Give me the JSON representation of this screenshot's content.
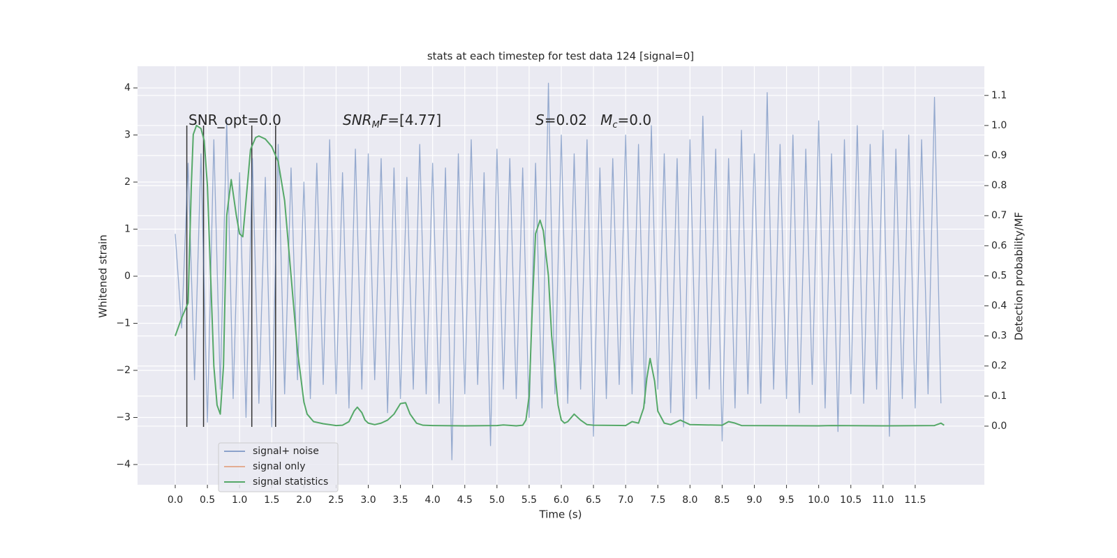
{
  "chart_data": {
    "type": "line",
    "title": "stats at each timestep for test data 124 [signal=0]",
    "xlabel": "Time (s)",
    "ylabel": "Whitened strain",
    "y2label": "Detection probability/MF",
    "xlim": [
      -0.586,
      12.575
    ],
    "ylim": [
      -4.43,
      4.46
    ],
    "y2lim": [
      -0.195,
      1.197
    ],
    "xticks": [
      {
        "value": 0,
        "label": "0.0"
      },
      0.5,
      {
        "value": 1,
        "label": "1.0"
      },
      1.5,
      {
        "value": 2,
        "label": "2.0"
      },
      2.5,
      {
        "value": 3,
        "label": "3.0"
      },
      3.5,
      {
        "value": 4,
        "label": "4.0"
      },
      4.5,
      {
        "value": 5,
        "label": "5.0"
      },
      5.5,
      {
        "value": 6,
        "label": "6.0"
      },
      6.5,
      {
        "value": 7,
        "label": "7.0"
      },
      7.5,
      {
        "value": 8,
        "label": "8.0"
      },
      8.5,
      {
        "value": 9,
        "label": "9.0"
      },
      9.5,
      {
        "value": 10,
        "label": "10.0"
      },
      10.5,
      {
        "value": 11,
        "label": "11.0"
      },
      11.5
    ],
    "yticks": [
      {
        "value": -4,
        "label": "−4"
      },
      {
        "value": -3,
        "label": "−3"
      },
      {
        "value": -2,
        "label": "−2"
      },
      {
        "value": -1,
        "label": "−1"
      },
      0,
      1,
      2,
      3,
      4
    ],
    "y2ticks": [
      {
        "value": 0,
        "label": "0.0"
      },
      0.1,
      0.2,
      0.3,
      0.4,
      0.5,
      0.6,
      0.7,
      0.8,
      0.9,
      {
        "value": 1,
        "label": "1.0"
      },
      1.1
    ],
    "grid": true,
    "legend": "lower left",
    "series": [
      {
        "name": "signal+ noise",
        "color": "#4c72b0",
        "x": [
          0.0,
          0.1,
          0.2,
          0.3,
          0.4,
          0.5,
          0.6,
          0.7,
          0.8,
          0.9,
          1.0,
          1.1,
          1.2,
          1.3,
          1.4,
          1.5,
          1.6,
          1.7,
          1.8,
          1.9,
          2.0,
          2.1,
          2.2,
          2.3,
          2.4,
          2.5,
          2.6,
          2.7,
          2.8,
          2.9,
          3.0,
          3.1,
          3.2,
          3.3,
          3.4,
          3.5,
          3.6,
          3.7,
          3.8,
          3.9,
          4.0,
          4.1,
          4.2,
          4.3,
          4.4,
          4.5,
          4.6,
          4.7,
          4.8,
          4.9,
          5.0,
          5.1,
          5.2,
          5.3,
          5.4,
          5.5,
          5.6,
          5.7,
          5.8,
          5.9,
          6.0,
          6.1,
          6.2,
          6.3,
          6.4,
          6.5,
          6.6,
          6.7,
          6.8,
          6.9,
          7.0,
          7.1,
          7.2,
          7.3,
          7.4,
          7.5,
          7.6,
          7.7,
          7.8,
          7.9,
          8.0,
          8.1,
          8.2,
          8.3,
          8.4,
          8.5,
          8.6,
          8.7,
          8.8,
          8.9,
          9.0,
          9.1,
          9.2,
          9.3,
          9.4,
          9.5,
          9.6,
          9.7,
          9.8,
          9.9,
          10.0,
          10.1,
          10.2,
          10.3,
          10.4,
          10.5,
          10.6,
          10.7,
          10.8,
          10.9,
          11.0,
          11.1,
          11.2,
          11.3,
          11.4,
          11.5,
          11.6,
          11.7,
          11.8,
          11.9
        ],
        "values": [
          0.9,
          -1.1,
          2.4,
          -2.2,
          2.6,
          -3.1,
          2.9,
          -2.4,
          3.3,
          -2.6,
          2.2,
          -3.0,
          2.5,
          -2.7,
          2.1,
          -3.2,
          2.8,
          -2.5,
          2.3,
          -2.2,
          2.0,
          -2.6,
          2.4,
          -2.3,
          2.9,
          -2.5,
          2.2,
          -2.8,
          2.7,
          -2.4,
          2.6,
          -2.2,
          2.5,
          -2.9,
          2.3,
          -2.6,
          2.1,
          -2.4,
          2.8,
          -2.5,
          2.4,
          -2.7,
          2.3,
          -3.9,
          2.6,
          -2.5,
          2.9,
          -2.3,
          2.2,
          -3.6,
          2.7,
          -2.4,
          2.5,
          -2.6,
          2.3,
          -3.0,
          2.4,
          -2.8,
          4.1,
          -2.5,
          3.0,
          -2.7,
          2.6,
          -2.4,
          2.9,
          -3.4,
          2.3,
          -2.6,
          2.5,
          -2.3,
          3.0,
          -2.5,
          2.8,
          -2.7,
          3.2,
          -2.4,
          2.6,
          -2.9,
          2.5,
          -3.2,
          2.9,
          -2.6,
          3.4,
          -2.4,
          2.7,
          -3.5,
          2.5,
          -2.8,
          3.1,
          -2.5,
          2.6,
          -2.7,
          3.9,
          -2.4,
          2.8,
          -2.6,
          3.0,
          -2.9,
          2.7,
          -2.3,
          3.3,
          -2.8,
          2.6,
          -3.3,
          2.9,
          -2.5,
          3.2,
          -2.7,
          2.8,
          -2.4,
          3.1,
          -3.4,
          2.7,
          -2.6,
          3.0,
          -2.8,
          2.9,
          -2.5,
          3.8,
          -2.7
        ]
      },
      {
        "name": "signal only",
        "color": "#dd8452"
      },
      {
        "name": "signal statistics",
        "color": "#55a868",
        "axis": "y2",
        "x": [
          0,
          0.1,
          0.2,
          0.25,
          0.28,
          0.33,
          0.4,
          0.45,
          0.5,
          0.55,
          0.6,
          0.65,
          0.7,
          0.75,
          0.8,
          0.87,
          0.95,
          1.0,
          1.05,
          1.1,
          1.17,
          1.25,
          1.3,
          1.4,
          1.5,
          1.6,
          1.7,
          1.8,
          1.9,
          2.0,
          2.05,
          2.15,
          2.3,
          2.5,
          2.6,
          2.7,
          2.78,
          2.83,
          2.9,
          2.95,
          3.0,
          3.1,
          3.2,
          3.3,
          3.4,
          3.5,
          3.58,
          3.65,
          3.75,
          3.85,
          4.0,
          4.5,
          5.0,
          5.1,
          5.3,
          5.4,
          5.45,
          5.5,
          5.55,
          5.6,
          5.67,
          5.72,
          5.8,
          5.85,
          5.95,
          6.0,
          6.05,
          6.1,
          6.2,
          6.3,
          6.4,
          6.5,
          7.0,
          7.1,
          7.2,
          7.28,
          7.33,
          7.38,
          7.45,
          7.5,
          7.6,
          7.7,
          7.85,
          8.0,
          8.5,
          8.6,
          8.7,
          8.8,
          10.0,
          10.2,
          11.0,
          11.8,
          11.9,
          11.95
        ],
        "values": [
          0.3,
          0.36,
          0.41,
          0.8,
          0.97,
          1.0,
          0.99,
          0.95,
          0.8,
          0.5,
          0.2,
          0.07,
          0.04,
          0.2,
          0.7,
          0.82,
          0.7,
          0.64,
          0.63,
          0.75,
          0.92,
          0.96,
          0.965,
          0.955,
          0.93,
          0.88,
          0.75,
          0.5,
          0.25,
          0.08,
          0.04,
          0.015,
          0.008,
          0.002,
          0.003,
          0.015,
          0.05,
          0.063,
          0.045,
          0.02,
          0.01,
          0.005,
          0.01,
          0.02,
          0.04,
          0.075,
          0.078,
          0.04,
          0.01,
          0.003,
          0.002,
          0.001,
          0.002,
          0.004,
          0.001,
          0.003,
          0.02,
          0.1,
          0.4,
          0.64,
          0.685,
          0.65,
          0.5,
          0.3,
          0.07,
          0.02,
          0.01,
          0.015,
          0.04,
          0.02,
          0.005,
          0.003,
          0.002,
          0.015,
          0.01,
          0.06,
          0.16,
          0.225,
          0.15,
          0.05,
          0.01,
          0.005,
          0.02,
          0.005,
          0.003,
          0.015,
          0.01,
          0.002,
          0.001,
          0.002,
          0.001,
          0.002,
          0.01,
          0.003
        ]
      }
    ],
    "event_lines": {
      "x": [
        0.18,
        0.44,
        1.19,
        1.56
      ],
      "ymin": -3.2,
      "ymax": 3.2,
      "color": "#333333"
    },
    "annotations": [
      {
        "parts": [
          {
            "text": "SNR_opt=0.0"
          }
        ]
      },
      {
        "parts": [
          {
            "text": "SNR",
            "style": "italic"
          },
          {
            "text": "M",
            "style": "italic-sub"
          },
          {
            "text": "F",
            "style": "italic"
          },
          {
            "text": "=[4.77]"
          }
        ]
      },
      {
        "parts": [
          {
            "text": "S",
            "style": "italic"
          },
          {
            "text": "=0.02   "
          },
          {
            "text": "M",
            "style": "italic"
          },
          {
            "text": "c",
            "style": "italic-sub"
          },
          {
            "text": "=0.0"
          }
        ]
      }
    ]
  }
}
